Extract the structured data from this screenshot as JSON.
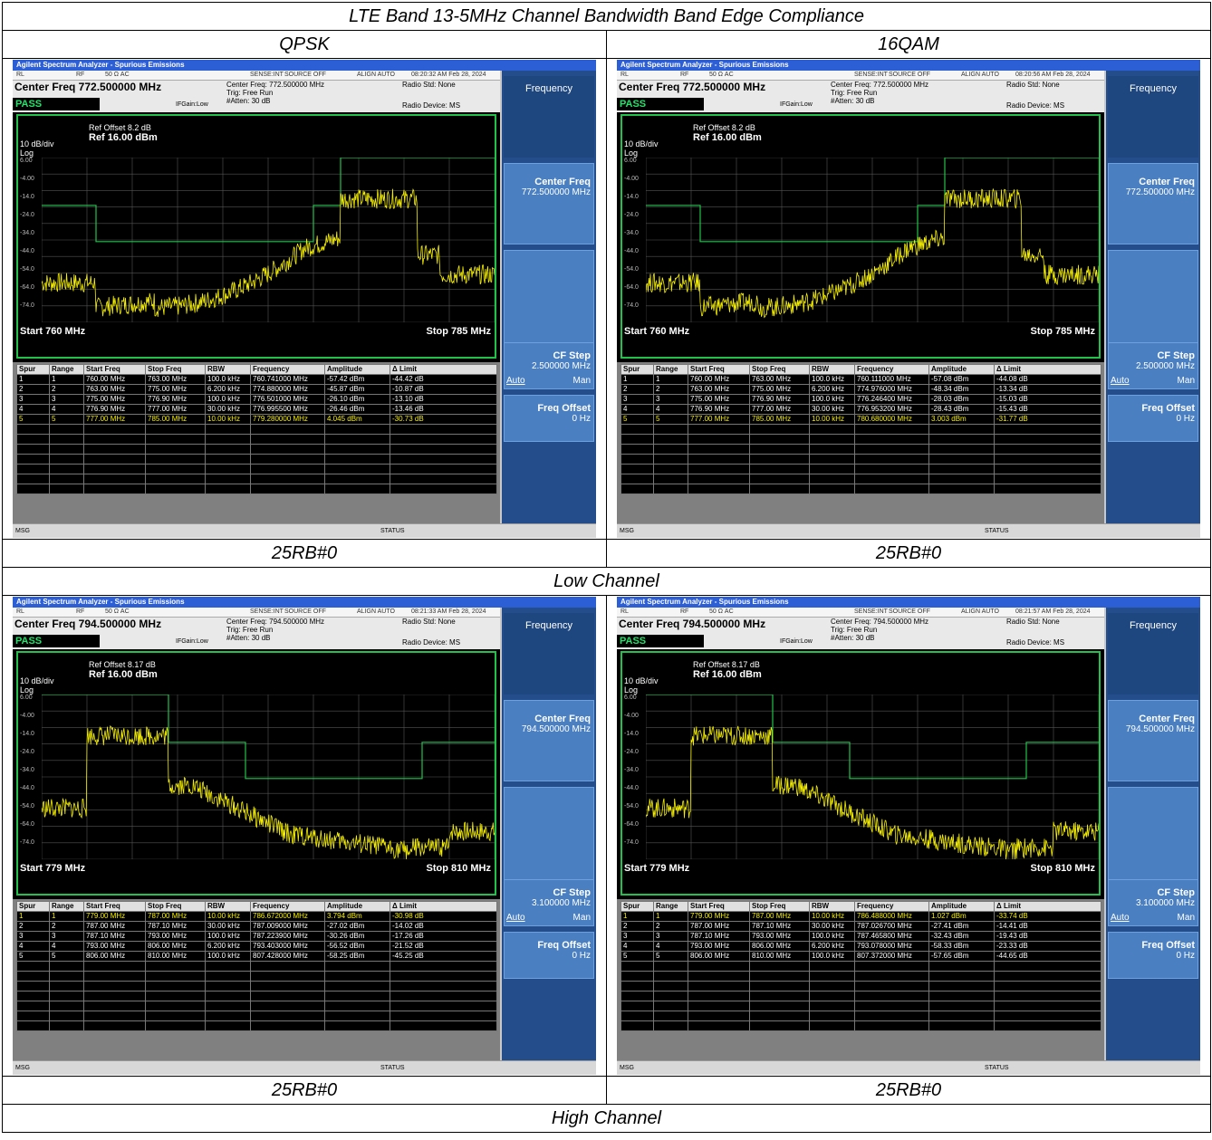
{
  "page_title": "LTE Band 13-5MHz Channel Bandwidth Band Edge Compliance",
  "columns": [
    "QPSK",
    "16QAM"
  ],
  "row_captions": [
    "Low Channel",
    "High Channel"
  ],
  "app": {
    "title": "Agilent Spectrum Analyzer - Spurious Emissions",
    "status_items": [
      "RL",
      "RF",
      "50 Ω  AC",
      "SENSE:INT",
      "SOURCE OFF",
      "ALIGN AUTO"
    ],
    "pass": "PASS",
    "ifgain": "IFGain:Low",
    "trig": "Trig: Free Run",
    "atten": "#Atten: 30 dB",
    "radio_std": "Radio Std: None",
    "radio_device": "Radio Device: MS",
    "scale": "10 dB/div",
    "log": "Log",
    "y_labels": [
      "6.00",
      "-4.00",
      "-14.0",
      "-24.0",
      "-34.0",
      "-44.0",
      "-54.0",
      "-64.0",
      "-74.0"
    ],
    "msg": "MSG",
    "status": "STATUS",
    "softkeys": {
      "menu": "Frequency",
      "center": "Center Freq",
      "cfstep": "CF Step",
      "auto": "Auto",
      "man": "Man",
      "offset": "Freq Offset",
      "offset_val": "0 Hz"
    },
    "table_headers": [
      "Spur",
      "Range",
      "Start Freq",
      "Stop Freq",
      "RBW",
      "Frequency",
      "Amplitude",
      "Δ Limit"
    ]
  },
  "shots": [
    {
      "caption": "25RB#0",
      "timestamp": "08:20:32 AM Feb 28, 2024",
      "center_freq": "Center Freq 772.500000 MHz",
      "center_freq_small": "Center Freq: 772.500000 MHz",
      "center_val": "772.500000 MHz",
      "cfstep_val": "2.500000 MHz",
      "ref_offset": "Ref Offset 8.2 dB",
      "ref_level": "Ref 16.00 dBm",
      "start": "Start  760 MHz",
      "stop": "Stop 785 MHz",
      "selected_row": 4,
      "rows": [
        [
          "1",
          "1",
          "760.00 MHz",
          "763.00 MHz",
          "100.0 kHz",
          "760.741000 MHz",
          "-57.42 dBm",
          "-44.42 dB"
        ],
        [
          "2",
          "2",
          "763.00 MHz",
          "775.00 MHz",
          "6.200 kHz",
          "774.880000 MHz",
          "-45.87 dBm",
          "-10.87 dB"
        ],
        [
          "3",
          "3",
          "775.00 MHz",
          "776.90 MHz",
          "100.0 kHz",
          "776.501000 MHz",
          "-26.10 dBm",
          "-13.10 dB"
        ],
        [
          "4",
          "4",
          "776.90 MHz",
          "777.00 MHz",
          "30.00 kHz",
          "776.995500 MHz",
          "-26.46 dBm",
          "-13.46 dB"
        ],
        [
          "5",
          "5",
          "777.00 MHz",
          "785.00 MHz",
          "10.00 kHz",
          "779.280000 MHz",
          "4.045 dBm",
          "-30.73 dB"
        ]
      ]
    },
    {
      "caption": "25RB#0",
      "timestamp": "08:20:56 AM Feb 28, 2024",
      "center_freq": "Center Freq 772.500000 MHz",
      "center_freq_small": "Center Freq: 772.500000 MHz",
      "center_val": "772.500000 MHz",
      "cfstep_val": "2.500000 MHz",
      "ref_offset": "Ref Offset 8.2 dB",
      "ref_level": "Ref 16.00 dBm",
      "start": "Start  760 MHz",
      "stop": "Stop 785 MHz",
      "selected_row": 4,
      "rows": [
        [
          "1",
          "1",
          "760.00 MHz",
          "763.00 MHz",
          "100.0 kHz",
          "760.111000 MHz",
          "-57.08 dBm",
          "-44.08 dB"
        ],
        [
          "2",
          "2",
          "763.00 MHz",
          "775.00 MHz",
          "6.200 kHz",
          "774.976000 MHz",
          "-48.34 dBm",
          "-13.34 dB"
        ],
        [
          "3",
          "3",
          "775.00 MHz",
          "776.90 MHz",
          "100.0 kHz",
          "776.246400 MHz",
          "-28.03 dBm",
          "-15.03 dB"
        ],
        [
          "4",
          "4",
          "776.90 MHz",
          "777.00 MHz",
          "30.00 kHz",
          "776.953200 MHz",
          "-28.43 dBm",
          "-15.43 dB"
        ],
        [
          "5",
          "5",
          "777.00 MHz",
          "785.00 MHz",
          "10.00 kHz",
          "780.680000 MHz",
          "3.003 dBm",
          "-31.77 dB"
        ]
      ]
    },
    {
      "caption": "25RB#0",
      "timestamp": "08:21:33 AM Feb 28, 2024",
      "center_freq": "Center Freq 794.500000 MHz",
      "center_freq_small": "Center Freq: 794.500000 MHz",
      "center_val": "794.500000 MHz",
      "cfstep_val": "3.100000 MHz",
      "ref_offset": "Ref Offset 8.17 dB",
      "ref_level": "Ref 16.00 dBm",
      "start": "Start  779 MHz",
      "stop": "Stop 810 MHz",
      "selected_row": 0,
      "rows": [
        [
          "1",
          "1",
          "779.00 MHz",
          "787.00 MHz",
          "10.00 kHz",
          "786.672000 MHz",
          "3.794 dBm",
          "-30.98 dB"
        ],
        [
          "2",
          "2",
          "787.00 MHz",
          "787.10 MHz",
          "30.00 kHz",
          "787.009000 MHz",
          "-27.02 dBm",
          "-14.02 dB"
        ],
        [
          "3",
          "3",
          "787.10 MHz",
          "793.00 MHz",
          "100.0 kHz",
          "787.223900 MHz",
          "-30.26 dBm",
          "-17.26 dB"
        ],
        [
          "4",
          "4",
          "793.00 MHz",
          "806.00 MHz",
          "6.200 kHz",
          "793.403000 MHz",
          "-56.52 dBm",
          "-21.52 dB"
        ],
        [
          "5",
          "5",
          "806.00 MHz",
          "810.00 MHz",
          "100.0 kHz",
          "807.428000 MHz",
          "-58.25 dBm",
          "-45.25 dB"
        ]
      ]
    },
    {
      "caption": "25RB#0",
      "timestamp": "08:21:57 AM Feb 28, 2024",
      "center_freq": "Center Freq 794.500000 MHz",
      "center_freq_small": "Center Freq: 794.500000 MHz",
      "center_val": "794.500000 MHz",
      "cfstep_val": "3.100000 MHz",
      "ref_offset": "Ref Offset 8.17 dB",
      "ref_level": "Ref 16.00 dBm",
      "start": "Start  779 MHz",
      "stop": "Stop 810 MHz",
      "selected_row": 0,
      "rows": [
        [
          "1",
          "1",
          "779.00 MHz",
          "787.00 MHz",
          "10.00 kHz",
          "786.488000 MHz",
          "1.027 dBm",
          "-33.74 dB"
        ],
        [
          "2",
          "2",
          "787.00 MHz",
          "787.10 MHz",
          "30.00 kHz",
          "787.026700 MHz",
          "-27.41 dBm",
          "-14.41 dB"
        ],
        [
          "3",
          "3",
          "787.10 MHz",
          "793.00 MHz",
          "100.0 kHz",
          "787.465800 MHz",
          "-32.43 dBm",
          "-19.43 dB"
        ],
        [
          "4",
          "4",
          "793.00 MHz",
          "806.00 MHz",
          "6.200 kHz",
          "793.078000 MHz",
          "-58.33 dBm",
          "-23.33 dB"
        ],
        [
          "5",
          "5",
          "806.00 MHz",
          "810.00 MHz",
          "100.0 kHz",
          "807.372000 MHz",
          "-57.65 dBm",
          "-44.65 dB"
        ]
      ]
    }
  ],
  "colors": {
    "trace": "#f6f000",
    "limit": "#21c24a",
    "pass": "#21e36a",
    "titlebar": "#2c5ed6"
  }
}
